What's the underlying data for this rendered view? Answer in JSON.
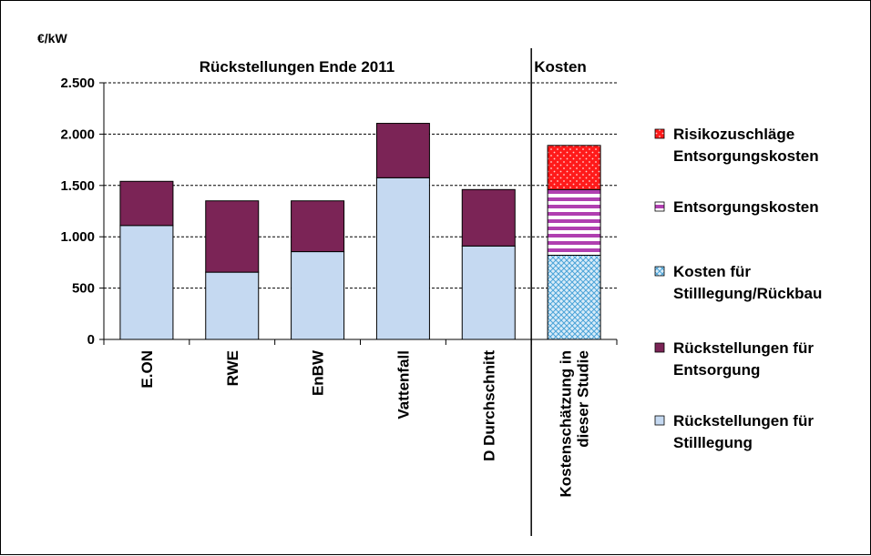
{
  "chart_data": {
    "type": "bar",
    "stacked": true,
    "ylabel": "€/kW",
    "ylim": [
      0,
      2500
    ],
    "yticks": [
      0,
      500,
      1000,
      1500,
      2000,
      2500
    ],
    "ytick_labels": [
      "0",
      "500",
      "1.000",
      "1.500",
      "2.000",
      "2.500"
    ],
    "grid": "horizontal-dashed",
    "section_titles": [
      "Rückstellungen  Ende 2011",
      "Kosten"
    ],
    "categories": [
      "E.ON",
      "RWE",
      "EnBW",
      "Vattenfall",
      "D Durchschnitt",
      "Kostenschätzung in dieser Studie"
    ],
    "category_label_lines": [
      [
        "E.ON"
      ],
      [
        "RWE"
      ],
      [
        "EnBW"
      ],
      [
        "Vattenfall"
      ],
      [
        "D Durchschnitt"
      ],
      [
        "Kostenschätzung in",
        "dieser Studie"
      ]
    ],
    "series": [
      {
        "name": "Rückstellungen für Stilllegung",
        "label_lines": [
          "Rückstellungen für",
          "Stilllegung"
        ],
        "color": "#c5d9f1",
        "pattern": "solid",
        "values": [
          1110,
          655,
          855,
          1575,
          910,
          0
        ]
      },
      {
        "name": "Rückstellungen für Entsorgung",
        "label_lines": [
          "Rückstellungen für",
          "Entsorgung"
        ],
        "color": "#7b2456",
        "pattern": "solid",
        "values": [
          430,
          695,
          495,
          530,
          550,
          0
        ]
      },
      {
        "name": "Kosten für Stilllegung/Rückbau",
        "label_lines": [
          "Kosten für",
          "Stilllegung/Rückbau"
        ],
        "color": "#7ab8e0",
        "pattern": "crosshatch",
        "values": [
          0,
          0,
          0,
          0,
          0,
          820
        ]
      },
      {
        "name": "Entsorgungskosten",
        "label_lines": [
          "Entsorgungskosten"
        ],
        "color": "#b03fb0",
        "pattern": "horizontal-stripes",
        "values": [
          0,
          0,
          0,
          0,
          0,
          640
        ]
      },
      {
        "name": "Risikozuschläge Entsorgungskosten",
        "label_lines": [
          "Risikozuschläge",
          "Entsorgungskosten"
        ],
        "color": "#ff1a1a",
        "pattern": "dots",
        "values": [
          0,
          0,
          0,
          0,
          0,
          430
        ]
      }
    ],
    "legend_order": [
      4,
      3,
      2,
      1,
      0
    ],
    "legend_position": "right"
  }
}
